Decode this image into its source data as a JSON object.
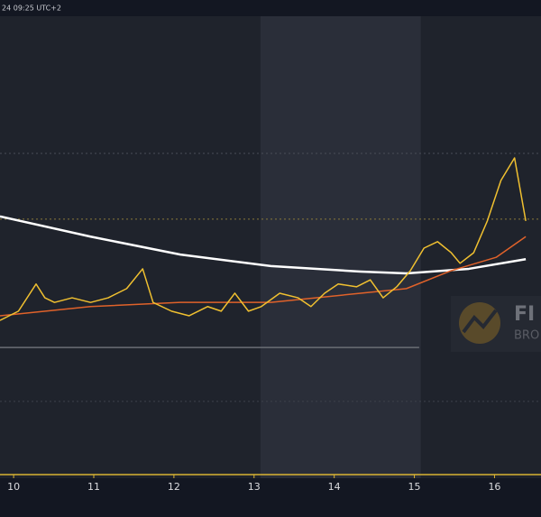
{
  "header": {
    "text": "24 09:25 UTC+2"
  },
  "logo": {
    "line1": "FI",
    "line2": "BRO"
  },
  "chart_data": {
    "type": "line",
    "xlim": [
      9.83,
      16.58
    ],
    "ylim": [
      0,
      100
    ],
    "xticks": [
      10,
      11,
      12,
      13,
      14,
      15,
      16
    ],
    "shaded_range": [
      13.08,
      15.08
    ],
    "levels": [
      {
        "value": 70.6,
        "color": "#4a4e58",
        "dashed": true
      },
      {
        "value": 56.3,
        "color": "#8a7a3a",
        "dashed": true
      },
      {
        "value": 16.7,
        "color": "#3e424c",
        "dashed": true
      },
      {
        "value": 28.4,
        "color": "#6b6e75",
        "dashed": false,
        "end": 15.06
      }
    ],
    "series": [
      {
        "color": "#ffffff",
        "width": 2.5,
        "x": [
          9.83,
          10.96,
          12.08,
          13.21,
          14.33,
          14.9,
          15.68,
          16.39
        ],
        "values": [
          56.9,
          52.5,
          48.6,
          46.1,
          44.9,
          44.5,
          45.5,
          47.6
        ]
      },
      {
        "color": "#e0622a",
        "width": 1.5,
        "x": [
          9.83,
          10.96,
          12.08,
          13.21,
          14.33,
          14.9,
          15.46,
          16.02,
          16.39
        ],
        "values": [
          35.3,
          37.3,
          38.2,
          38.2,
          40.2,
          41.2,
          45.1,
          48,
          52.5
        ]
      },
      {
        "color": "#f0c030",
        "width": 1.5,
        "x": [
          9.83,
          10.06,
          10.28,
          10.39,
          10.51,
          10.73,
          10.96,
          11.18,
          11.41,
          11.61,
          11.74,
          11.97,
          12.19,
          12.42,
          12.59,
          12.76,
          12.93,
          13.09,
          13.32,
          13.55,
          13.71,
          13.88,
          14.05,
          14.28,
          14.45,
          14.61,
          14.78,
          14.95,
          15.12,
          15.29,
          15.46,
          15.57,
          15.74,
          15.91,
          16.08,
          16.25,
          16.3,
          16.39
        ],
        "values": [
          34.3,
          36.3,
          42.2,
          39.2,
          38.2,
          39.2,
          38.2,
          39.2,
          41.2,
          45.5,
          38.2,
          36.3,
          35.3,
          37.3,
          36.3,
          40.2,
          36.3,
          37.3,
          40.2,
          39.2,
          37.3,
          40.2,
          42.2,
          41.6,
          43.1,
          39.2,
          41.6,
          45.1,
          50,
          51.4,
          49,
          46.7,
          49,
          55.9,
          64.7,
          69.6,
          64.7,
          55.9
        ]
      }
    ]
  }
}
